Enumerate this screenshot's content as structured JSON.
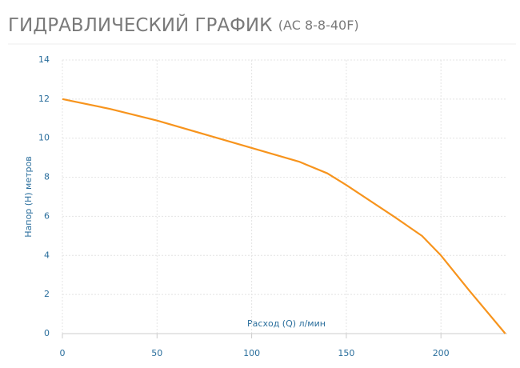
{
  "chart_data": {
    "type": "line",
    "title": "ГИДРАВЛИЧЕСКИЙ ГРАФИК",
    "subtitle": "(AC 8-8-40F)",
    "x_label": "Расход (Q) л/мин",
    "y_label": "Напор (H) метров",
    "x": [
      0,
      25,
      50,
      75,
      100,
      125,
      140,
      150,
      175,
      190,
      200,
      215,
      234
    ],
    "values": [
      12,
      11.5,
      10.9,
      10.2,
      9.5,
      8.8,
      8.2,
      7.6,
      6,
      5,
      4,
      2.2,
      0
    ],
    "color": "#f7941d",
    "xlim": [
      0,
      235
    ],
    "xticks": [
      0,
      50,
      100,
      150,
      200
    ],
    "ylim": [
      0,
      14
    ],
    "yticks": [
      0,
      2,
      4,
      6,
      8,
      10,
      12,
      14
    ],
    "grid": true
  }
}
